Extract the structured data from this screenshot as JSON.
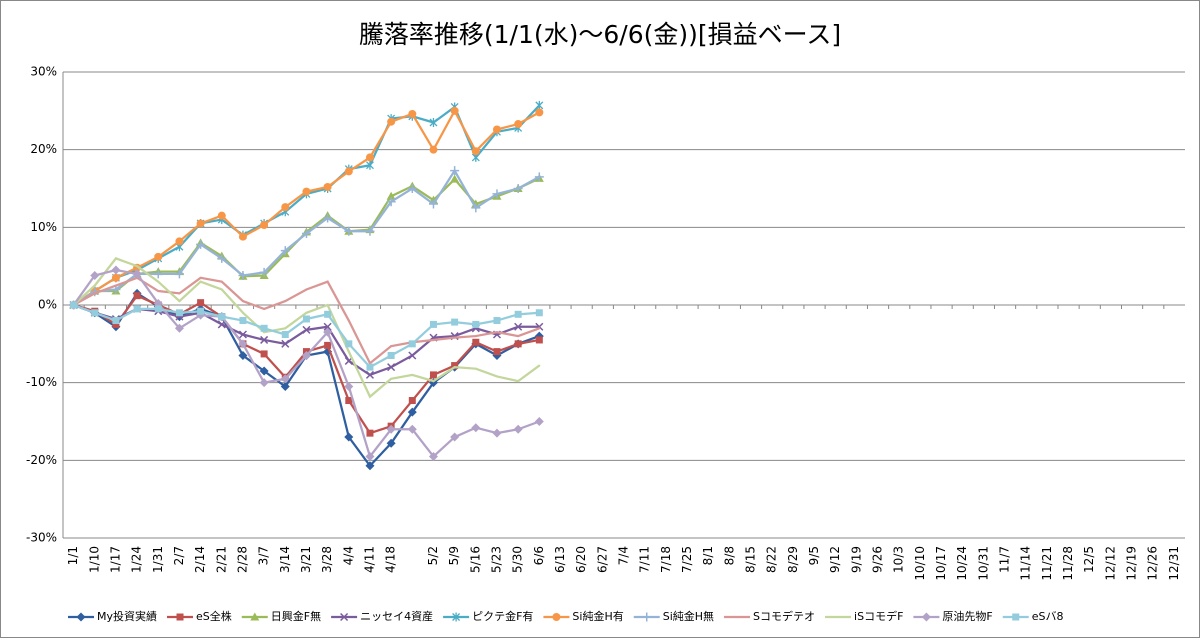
{
  "chart_data": {
    "type": "line",
    "title": "騰落率推移(1/1(水)～6/6(金))[損益ベース]",
    "categories": [
      "1/1",
      "1/10",
      "1/17",
      "1/24",
      "1/31",
      "2/7",
      "2/14",
      "2/21",
      "2/28",
      "3/7",
      "3/14",
      "3/21",
      "3/28",
      "4/4",
      "4/11",
      "4/18",
      null,
      "5/2",
      "5/9",
      "5/16",
      "5/23",
      "5/30",
      "6/6",
      "6/13",
      "6/20",
      "6/27",
      "7/4",
      "7/11",
      "7/18",
      "7/25",
      "8/1",
      "8/8",
      "8/15",
      "8/22",
      "8/29",
      "9/5",
      "9/12",
      "9/19",
      "9/26",
      "10/3",
      "10/10",
      "10/17",
      "10/24",
      "10/31",
      "11/7",
      "11/14",
      "11/21",
      "11/28",
      "12/5",
      "12/12",
      "12/19",
      "12/26",
      "12/31"
    ],
    "ylim": [
      -30,
      30
    ],
    "yticks": [
      {
        "value": -30,
        "label": "-30%"
      },
      {
        "value": -20,
        "label": "-20%"
      },
      {
        "value": -10,
        "label": "-10%"
      },
      {
        "value": 0,
        "label": "0%"
      },
      {
        "value": 10,
        "label": "10%"
      },
      {
        "value": 20,
        "label": "20%"
      },
      {
        "value": 30,
        "label": "30%"
      }
    ],
    "grid": true,
    "legend": "bottom",
    "series": [
      {
        "name": "My投資実績",
        "color": "#2f5fa0",
        "marker": "diamond",
        "values": [
          0,
          -1,
          -2.8,
          1.5,
          -0.2,
          -1.5,
          -0.5,
          -1.5,
          -6.5,
          -8.5,
          -10.5,
          -6.5,
          -6,
          -17,
          -20.7,
          -17.8,
          -13.8,
          -10,
          -8,
          -5,
          -6.5,
          -5,
          -4,
          null,
          null,
          null,
          null,
          null,
          null,
          null,
          null,
          null,
          null,
          null,
          null,
          null,
          null,
          null,
          null,
          null,
          null,
          null,
          null,
          null,
          null,
          null,
          null,
          null,
          null,
          null,
          null,
          null,
          null
        ]
      },
      {
        "name": "eS全株",
        "color": "#c0504d",
        "marker": "square",
        "values": [
          0,
          -0.8,
          -2.5,
          1.2,
          0,
          -1.2,
          0.3,
          -1.5,
          -5,
          -6.3,
          -9.3,
          -6,
          -5.2,
          -12.3,
          -16.5,
          -15.6,
          -12.3,
          -9,
          -7.8,
          -4.8,
          -6,
          -5,
          -4.5,
          null,
          null,
          null,
          null,
          null,
          null,
          null,
          null,
          null,
          null,
          null,
          null,
          null,
          null,
          null,
          null,
          null,
          null,
          null,
          null,
          null,
          null,
          null,
          null,
          null,
          null,
          null,
          null,
          null,
          null
        ]
      },
      {
        "name": "日興金F無",
        "color": "#9bbb59",
        "marker": "triangle",
        "values": [
          0,
          1.8,
          1.8,
          4,
          4.3,
          4.3,
          8,
          6.3,
          3.7,
          3.8,
          6.6,
          9.4,
          11.5,
          9.5,
          9.7,
          14,
          15.3,
          13.5,
          16.2,
          13,
          14,
          15,
          16.3,
          null,
          null,
          null,
          null,
          null,
          null,
          null,
          null,
          null,
          null,
          null,
          null,
          null,
          null,
          null,
          null,
          null,
          null,
          null,
          null,
          null,
          null,
          null,
          null,
          null,
          null,
          null,
          null,
          null,
          null
        ]
      },
      {
        "name": "ニッセイ4資産",
        "color": "#7a5b9e",
        "marker": "x",
        "values": [
          0,
          -1,
          -1.8,
          -0.5,
          -0.8,
          -1.5,
          -1,
          -2.5,
          -3.8,
          -4.5,
          -5,
          -3.2,
          -2.8,
          -7.2,
          -9,
          -8,
          -6.5,
          -4.2,
          -4,
          -3,
          -3.8,
          -2.8,
          -2.8,
          null,
          null,
          null,
          null,
          null,
          null,
          null,
          null,
          null,
          null,
          null,
          null,
          null,
          null,
          null,
          null,
          null,
          null,
          null,
          null,
          null,
          null,
          null,
          null,
          null,
          null,
          null,
          null,
          null,
          null
        ]
      },
      {
        "name": "ピクテ金F有",
        "color": "#4bacc6",
        "marker": "star",
        "values": [
          0,
          1.8,
          3.5,
          4.5,
          6,
          7.5,
          10.5,
          11,
          9,
          10.5,
          12,
          14.3,
          15,
          17.5,
          18,
          24,
          24.3,
          23.5,
          25.5,
          19,
          22.3,
          22.8,
          25.7,
          null,
          null,
          null,
          null,
          null,
          null,
          null,
          null,
          null,
          null,
          null,
          null,
          null,
          null,
          null,
          null,
          null,
          null,
          null,
          null,
          null,
          null,
          null,
          null,
          null,
          null,
          null,
          null,
          null,
          null
        ]
      },
      {
        "name": "Si純金H有",
        "color": "#f79646",
        "marker": "circle",
        "values": [
          0,
          1.8,
          3.5,
          4.8,
          6.2,
          8.2,
          10.5,
          11.5,
          8.8,
          10.3,
          12.6,
          14.6,
          15.2,
          17.2,
          19,
          23.6,
          24.6,
          20,
          25,
          19.8,
          22.6,
          23.3,
          24.8,
          null,
          null,
          null,
          null,
          null,
          null,
          null,
          null,
          null,
          null,
          null,
          null,
          null,
          null,
          null,
          null,
          null,
          null,
          null,
          null,
          null,
          null,
          null,
          null,
          null,
          null,
          null,
          null,
          null,
          null
        ]
      },
      {
        "name": "Si純金H無",
        "color": "#95b3d7",
        "marker": "plus",
        "values": [
          0,
          1.7,
          2,
          4,
          4,
          4,
          7.8,
          6,
          3.8,
          4.2,
          7,
          9.2,
          11.2,
          9.5,
          9.5,
          13.3,
          15,
          13,
          17.3,
          12.5,
          14.3,
          15,
          16.5,
          null,
          null,
          null,
          null,
          null,
          null,
          null,
          null,
          null,
          null,
          null,
          null,
          null,
          null,
          null,
          null,
          null,
          null,
          null,
          null,
          null,
          null,
          null,
          null,
          null,
          null,
          null,
          null,
          null,
          null
        ]
      },
      {
        "name": "Sコモデテオ",
        "color": "#d99694",
        "marker": "none",
        "values": [
          0,
          1.5,
          2.5,
          3.5,
          1.8,
          1.5,
          3.5,
          3,
          0.5,
          -0.5,
          0.5,
          2,
          3,
          -2,
          -7.5,
          -5.3,
          -4.8,
          -4.5,
          -4.2,
          -4,
          -3.5,
          -4,
          -3,
          null,
          null,
          null,
          null,
          null,
          null,
          null,
          null,
          null,
          null,
          null,
          null,
          null,
          null,
          null,
          null,
          null,
          null,
          null,
          null,
          null,
          null,
          null,
          null,
          null,
          null,
          null,
          null,
          null,
          null
        ]
      },
      {
        "name": "iSコモデF",
        "color": "#c3d69b",
        "marker": "none",
        "values": [
          0,
          2.5,
          6,
          5,
          3,
          0.5,
          3,
          2,
          -1,
          -3.5,
          -3,
          -1,
          0,
          -6,
          -11.8,
          -9.5,
          -9,
          -9.8,
          -8,
          -8.2,
          -9.2,
          -9.8,
          -7.8,
          null,
          null,
          null,
          null,
          null,
          null,
          null,
          null,
          null,
          null,
          null,
          null,
          null,
          null,
          null,
          null,
          null,
          null,
          null,
          null,
          null,
          null,
          null,
          null,
          null,
          null,
          null,
          null,
          null,
          null
        ]
      },
      {
        "name": "原油先物F",
        "color": "#b3a2c7",
        "marker": "diamond",
        "values": [
          0,
          3.8,
          4.5,
          4,
          0.2,
          -3,
          -1.3,
          -1.5,
          -5,
          -10,
          -9.5,
          -6.5,
          -3.5,
          -10.5,
          -19.5,
          -16,
          -16,
          -19.5,
          -17,
          -15.8,
          -16.5,
          -16,
          -15,
          null,
          null,
          null,
          null,
          null,
          null,
          null,
          null,
          null,
          null,
          null,
          null,
          null,
          null,
          null,
          null,
          null,
          null,
          null,
          null,
          null,
          null,
          null,
          null,
          null,
          null,
          null,
          null,
          null,
          null
        ]
      },
      {
        "name": "eSバ8",
        "color": "#93cddd",
        "marker": "square",
        "values": [
          0,
          -1,
          -2,
          -0.5,
          -0.5,
          -1,
          -0.8,
          -1.5,
          -2,
          -3,
          -3.8,
          -1.8,
          -1.2,
          -5,
          -8,
          -6.5,
          -5,
          -2.5,
          -2.2,
          -2.5,
          -2,
          -1.2,
          -1,
          null,
          null,
          null,
          null,
          null,
          null,
          null,
          null,
          null,
          null,
          null,
          null,
          null,
          null,
          null,
          null,
          null,
          null,
          null,
          null,
          null,
          null,
          null,
          null,
          null,
          null,
          null,
          null,
          null,
          null
        ]
      }
    ]
  }
}
